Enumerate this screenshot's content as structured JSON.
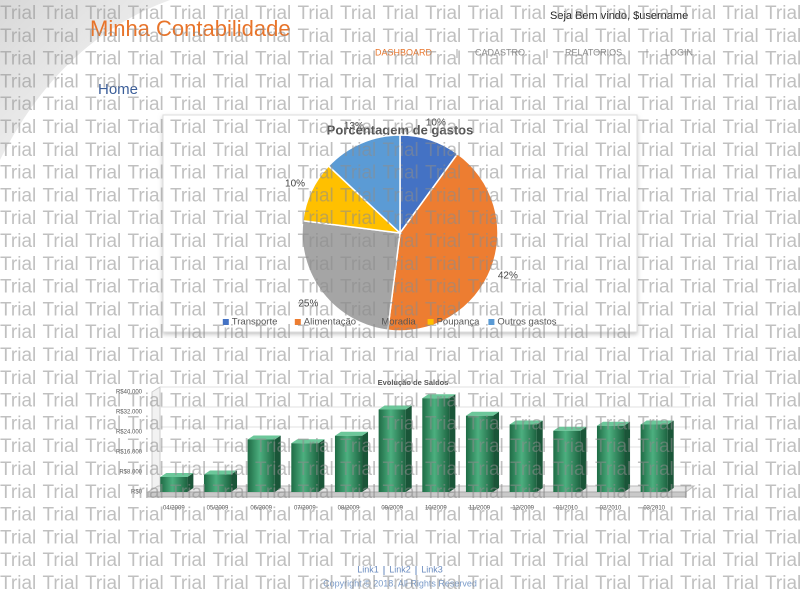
{
  "header": {
    "title": "Minha Contabilidade",
    "welcome": "Seja Bem vindo, $username"
  },
  "nav": [
    "DASHBOARD",
    "CADASTRO",
    "RELATORIOS",
    "LOGIN"
  ],
  "page_title": "Home",
  "chart_data": [
    {
      "type": "pie",
      "title": "Porcentagem de gastos",
      "categories": [
        "Transporte",
        "Alimentação",
        "Moradia",
        "Poupança",
        "Outros gastos"
      ],
      "values": [
        10,
        42,
        25,
        10,
        13
      ],
      "value_labels": [
        "10%",
        "42%",
        "25%",
        "10%",
        "13%"
      ],
      "colors": [
        "#4472c4",
        "#ed7d31",
        "#a5a5a5",
        "#ffc000",
        "#5b9bd5"
      ],
      "legend": "bottom"
    },
    {
      "type": "bar",
      "title": "Evolução de Saldos",
      "categories": [
        "04/2009",
        "05/2009",
        "06/2009",
        "07/2009",
        "08/2009",
        "09/2009",
        "10/2009",
        "11/2009",
        "12/2009",
        "01/2010",
        "02/2010",
        "03/2010"
      ],
      "values": [
        6000,
        7000,
        21000,
        19500,
        22500,
        33000,
        37500,
        30500,
        27000,
        24500,
        26500,
        27000
      ],
      "color": "#2e8b5f",
      "ylim": [
        0,
        40000
      ],
      "yticks": [
        {
          "value": 0,
          "label": "R$0"
        },
        {
          "value": 8000,
          "label": "R$8.000"
        },
        {
          "value": 16000,
          "label": "R$16.000"
        },
        {
          "value": 24000,
          "label": "R$24.000"
        },
        {
          "value": 32000,
          "label": "R$32.000"
        },
        {
          "value": 40000,
          "label": "R$40.000"
        }
      ],
      "grid": true
    }
  ],
  "footer": {
    "links": [
      "Link1",
      "Link2",
      "Link3"
    ],
    "copyright": "Copyright © 2018. All Rights Reserved"
  },
  "watermark": "Trial"
}
